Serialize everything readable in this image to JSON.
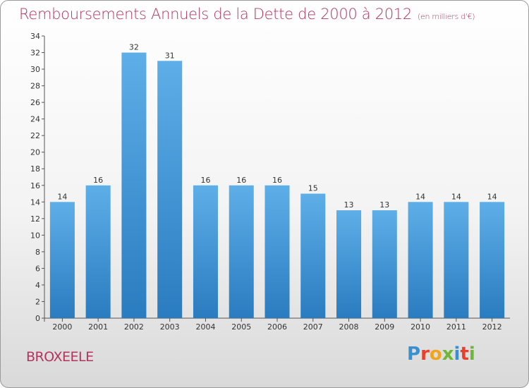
{
  "title": "Remboursements Annuels de la Dette de 2000 à 2012",
  "unit_note": "(en milliers d'€)",
  "town": "BROXEELE",
  "logo": {
    "letters": [
      "P",
      "r",
      "o",
      "x",
      "i",
      "t",
      "i"
    ],
    "colors": [
      "#3a8fd0",
      "#e8402a",
      "#f1a51c",
      "#6fb738",
      "#3a8fd0",
      "#e8402a",
      "#6fb738"
    ]
  },
  "colors": {
    "bar_light": "#5eaee8",
    "bar_dark": "#2a7cc0",
    "title": "#b5345e"
  },
  "chart_data": {
    "type": "bar",
    "title": "Remboursements Annuels de la Dette de 2000 à 2012",
    "categories": [
      "2000",
      "2001",
      "2002",
      "2003",
      "2004",
      "2005",
      "2006",
      "2007",
      "2008",
      "2009",
      "2010",
      "2011",
      "2012"
    ],
    "values": [
      14,
      16,
      32,
      31,
      16,
      16,
      16,
      15,
      13,
      13,
      14,
      14,
      14
    ],
    "ylim": [
      0,
      34
    ],
    "yticks": [
      0,
      2,
      4,
      6,
      8,
      10,
      12,
      14,
      16,
      18,
      20,
      22,
      24,
      26,
      28,
      30,
      32,
      34
    ],
    "grid": false,
    "xlabel": "",
    "ylabel": ""
  }
}
